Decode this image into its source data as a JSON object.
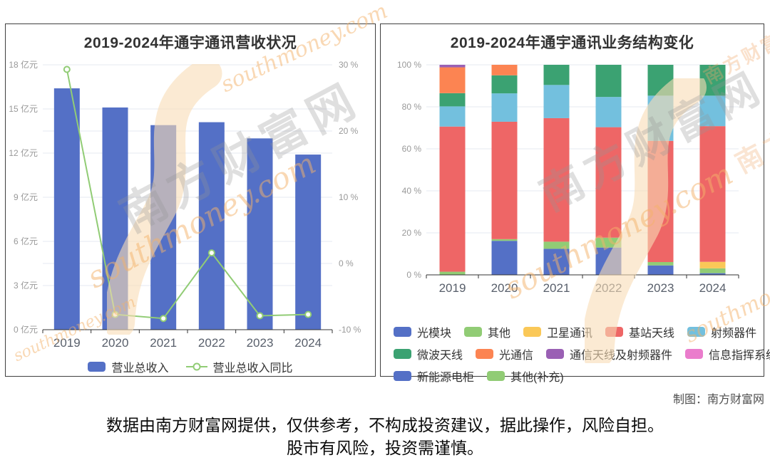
{
  "page": {
    "credit": "制图：南方财富网",
    "footer_line1": "数据由南方财富网提供，仅供参考，不构成投资建议，据此操作，风险自担。",
    "footer_line2": "股市有风险，投资需谨慎。",
    "watermark_cn": "南方财富网",
    "watermark_en": "southmoney.com"
  },
  "chart_data": [
    {
      "type": "bar",
      "subtype": "bar+line combo",
      "title": "2019-2024年通宇通讯营收状况",
      "categories": [
        "2019",
        "2020",
        "2021",
        "2022",
        "2023",
        "2024"
      ],
      "series": [
        {
          "name": "营业总收入",
          "type": "bar",
          "unit": "亿元",
          "color": "#5470c6",
          "values": [
            16.4,
            15.1,
            13.9,
            14.1,
            13.0,
            11.9
          ]
        },
        {
          "name": "营业总收入同比",
          "type": "line",
          "unit": "%",
          "color": "#91cc75",
          "values": [
            29.3,
            -7.7,
            -8.3,
            1.6,
            -7.9,
            -7.7
          ]
        }
      ],
      "y_left": {
        "min": 0,
        "max": 18,
        "ticks": [
          {
            "t": "0 亿元",
            "v": 0
          },
          {
            "t": "3 亿元",
            "v": 3
          },
          {
            "t": "6 亿元",
            "v": 6
          },
          {
            "t": "9 亿元",
            "v": 9
          },
          {
            "t": "12 亿元",
            "v": 12
          },
          {
            "t": "15 亿元",
            "v": 15
          },
          {
            "t": "18 亿元",
            "v": 18
          }
        ]
      },
      "y_right": {
        "min": -10,
        "max": 30,
        "ticks": [
          {
            "t": "-10 %",
            "v": -10
          },
          {
            "t": "0 %",
            "v": 0
          },
          {
            "t": "10 %",
            "v": 10
          },
          {
            "t": "20 %",
            "v": 20
          },
          {
            "t": "30 %",
            "v": 30
          }
        ]
      },
      "grid": true,
      "legend_position": "bottom"
    },
    {
      "type": "bar",
      "subtype": "stacked-percent",
      "title": "2019-2024年通宇通讯业务结构变化",
      "categories": [
        "2019",
        "2020",
        "2021",
        "2022",
        "2023",
        "2024"
      ],
      "unit": "%",
      "series": [
        {
          "name": "光模块",
          "color": "#5470c6",
          "values": [
            0,
            16.2,
            12.4,
            13.0,
            4.5,
            0.8
          ]
        },
        {
          "name": "其他",
          "color": "#91cc75",
          "values": [
            1.5,
            0.8,
            3.4,
            4.7,
            1.6,
            2.3
          ]
        },
        {
          "name": "卫星通讯",
          "color": "#fac858",
          "values": [
            0,
            0,
            0,
            0,
            0,
            3.1
          ]
        },
        {
          "name": "基站天线",
          "color": "#ee6666",
          "values": [
            69.1,
            55.9,
            58.8,
            52.6,
            57.7,
            64.6
          ]
        },
        {
          "name": "射频器件",
          "color": "#73c0de",
          "values": [
            9.6,
            13.5,
            15.8,
            14.4,
            21.5,
            14.5
          ]
        },
        {
          "name": "微波天线",
          "color": "#3ba272",
          "values": [
            6.3,
            8.6,
            9.6,
            15.3,
            14.7,
            14.7
          ]
        },
        {
          "name": "光通信",
          "color": "#fc8452",
          "values": [
            12.3,
            5.0,
            0,
            0,
            0,
            0
          ]
        },
        {
          "name": "通信天线及射频器件",
          "color": "#9a60b4",
          "values": [
            1.2,
            0,
            0,
            0,
            0,
            0
          ]
        },
        {
          "name": "信息指挥系统",
          "color": "#ea7ccc",
          "values": [
            0,
            0,
            0,
            0,
            0,
            0
          ]
        },
        {
          "name": "新能源电柜",
          "color": "#5470c6",
          "values": [
            0,
            0,
            0,
            0,
            0,
            0
          ]
        },
        {
          "name": "其他(补充)",
          "color": "#91cc75",
          "values": [
            0,
            0,
            0,
            0,
            0,
            0
          ]
        }
      ],
      "y": {
        "min": 0,
        "max": 100,
        "ticks": [
          {
            "t": "0 %",
            "v": 0
          },
          {
            "t": "20 %",
            "v": 20
          },
          {
            "t": "40 %",
            "v": 40
          },
          {
            "t": "60 %",
            "v": 60
          },
          {
            "t": "80 %",
            "v": 80
          },
          {
            "t": "100 %",
            "v": 100
          }
        ]
      },
      "grid": true,
      "legend_position": "bottom",
      "legend_rows": [
        [
          0,
          1,
          2,
          3,
          4
        ],
        [
          5,
          6,
          7,
          8
        ],
        [
          9,
          10
        ]
      ]
    }
  ]
}
